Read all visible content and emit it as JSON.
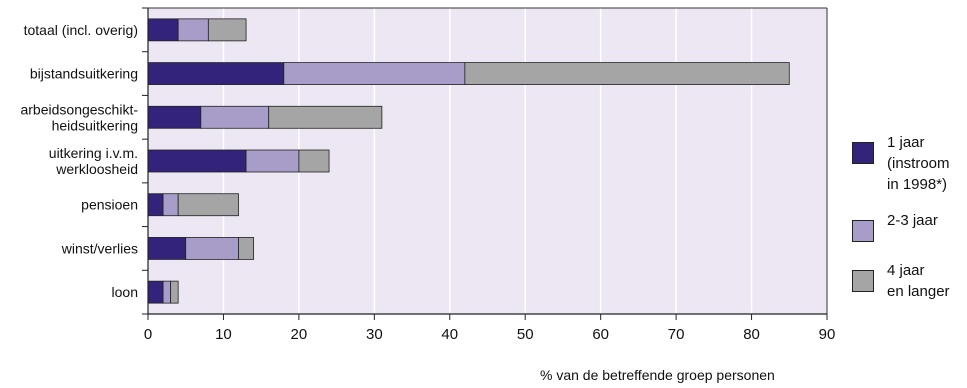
{
  "chart_data": {
    "type": "bar",
    "orientation": "horizontal",
    "stacked": true,
    "categories": [
      "totaal (incl. overig)",
      "bijstandsuitkering",
      "arbeidsongeschikt-\nheidsuitkering",
      "uitkering i.v.m.\nwerkloosheid",
      "pensioen",
      "winst/verlies",
      "loon"
    ],
    "series": [
      {
        "name": "1 jaar\n(instroom\nin 1998*)",
        "color": "#33237a",
        "values": [
          4,
          18,
          7,
          13,
          2,
          5,
          2
        ]
      },
      {
        "name": "2-3 jaar",
        "color": "#a89cc9",
        "values": [
          4,
          24,
          9,
          7,
          2,
          7,
          1
        ]
      },
      {
        "name": "4 jaar\nen langer",
        "color": "#a5a5a5",
        "values": [
          5,
          43,
          15,
          4,
          8,
          2,
          1
        ]
      }
    ],
    "xlabel": "% van de betreffende groep personen",
    "xlim": [
      0,
      90
    ],
    "xticks": [
      0,
      10,
      20,
      30,
      40,
      50,
      60,
      70,
      80,
      90
    ],
    "grid": true,
    "legend_position": "right",
    "plot_background": "#ece7f2"
  }
}
